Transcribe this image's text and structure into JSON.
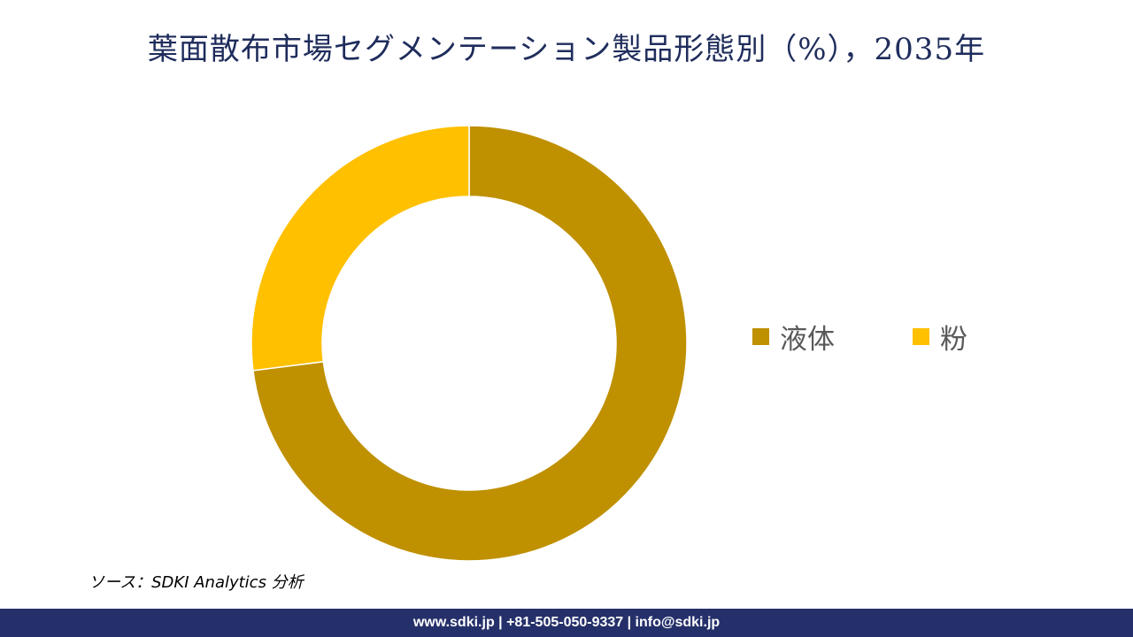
{
  "title": "葉面散布市場セグメンテーション製品形態別（%），2035年",
  "source": "ソース：SDKI Analytics 分析",
  "footer": "www.sdki.jp | +81-505-050-9337 | info@sdki.jp",
  "chart_data": {
    "type": "pie",
    "variant": "donut",
    "categories": [
      "液体",
      "粉"
    ],
    "values": [
      73,
      27
    ],
    "colors": [
      "#bf9000",
      "#ffc000"
    ],
    "legend_position": "right",
    "data_labels": false
  }
}
